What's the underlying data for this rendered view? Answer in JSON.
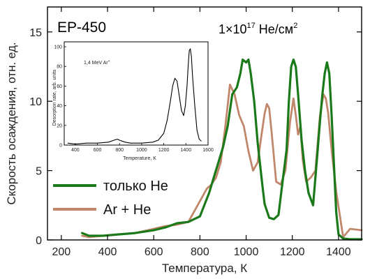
{
  "chart_data": [
    {
      "type": "line",
      "xlabel": "Температура, К",
      "ylabel": "Скорость осаждения, отн. ед.",
      "xlim": [
        140,
        1500
      ],
      "ylim": [
        0,
        16.8
      ],
      "xticks": [
        200,
        400,
        600,
        800,
        1000,
        1200,
        1400
      ],
      "yticks": [
        0,
        5,
        10,
        15
      ],
      "grid": false,
      "legend_position": "left",
      "annotations": {
        "sample": "EP-450",
        "fluence_prefix": "1×10",
        "fluence_exp": "17",
        "fluence_mid": " He/см",
        "fluence_sup2": "2"
      },
      "series": [
        {
          "name": "только He",
          "color": "#1a7a1a",
          "x": [
            290,
            320,
            380,
            450,
            520,
            600,
            650,
            700,
            750,
            800,
            840,
            860,
            880,
            900,
            920,
            940,
            960,
            975,
            985,
            1000,
            1010,
            1020,
            1035,
            1050,
            1060,
            1070,
            1080,
            1100,
            1120,
            1140,
            1160,
            1175,
            1185,
            1195,
            1205,
            1215,
            1225,
            1240,
            1255,
            1270,
            1290,
            1310,
            1320,
            1330,
            1340,
            1350,
            1360,
            1370,
            1380,
            1390,
            1400,
            1420,
            1450,
            1500
          ],
          "y": [
            0.5,
            0.3,
            0.3,
            0.4,
            0.5,
            0.7,
            0.9,
            1.2,
            1.3,
            1.7,
            3.4,
            4.5,
            5.6,
            6.7,
            8.2,
            10.5,
            11.0,
            12.0,
            13.0,
            12.8,
            13.0,
            12.0,
            10.0,
            7.0,
            5.5,
            4.0,
            2.6,
            1.6,
            1.5,
            1.8,
            4.5,
            6.5,
            10.0,
            12.5,
            13.0,
            12.5,
            10.5,
            7.2,
            5.0,
            3.4,
            2.5,
            6.5,
            8.6,
            10.5,
            12.0,
            12.8,
            12.0,
            9.0,
            5.5,
            2.0,
            0.4,
            0.1,
            0.05,
            0.05
          ]
        },
        {
          "name": "Ar + He",
          "color": "#c1876b",
          "x": [
            290,
            320,
            380,
            450,
            520,
            600,
            650,
            700,
            750,
            800,
            830,
            850,
            870,
            890,
            910,
            930,
            950,
            970,
            990,
            1010,
            1030,
            1050,
            1065,
            1080,
            1090,
            1100,
            1110,
            1130,
            1150,
            1170,
            1190,
            1205,
            1215,
            1225,
            1235,
            1245,
            1260,
            1280,
            1300,
            1320,
            1335,
            1345,
            1355,
            1370,
            1390,
            1420,
            1450,
            1500
          ],
          "y": [
            0.3,
            0.2,
            0.3,
            0.4,
            0.5,
            0.8,
            1.0,
            1.1,
            1.3,
            2.8,
            3.7,
            4.0,
            4.5,
            5.6,
            8.2,
            11.2,
            10.5,
            9.0,
            8.2,
            6.4,
            5.0,
            5.6,
            7.4,
            9.1,
            9.8,
            9.5,
            7.8,
            4.2,
            4.0,
            5.0,
            8.5,
            10.2,
            9.0,
            7.6,
            8.2,
            5.8,
            4.2,
            4.5,
            5.0,
            9.0,
            10.5,
            10.2,
            9.2,
            6.5,
            3.5,
            0.2,
            0.8,
            0.7
          ]
        }
      ]
    },
    {
      "type": "line",
      "inset": true,
      "title": "1,4 MeV Ar+",
      "xlabel": "Temperature, K",
      "ylabel": "Desorption rate, arb. units",
      "xlim": [
        300,
        1600
      ],
      "ylim": [
        0,
        105
      ],
      "xticks": [
        400,
        600,
        800,
        1000,
        1200,
        1400,
        1600
      ],
      "yticks": [
        0,
        20,
        40,
        60,
        80,
        100
      ],
      "series": [
        {
          "name": "",
          "color": "#000000",
          "x": [
            330,
            400,
            500,
            600,
            700,
            750,
            780,
            800,
            850,
            900,
            1000,
            1100,
            1150,
            1200,
            1230,
            1260,
            1280,
            1300,
            1320,
            1340,
            1360,
            1380,
            1395,
            1410,
            1420,
            1430,
            1440,
            1450,
            1460,
            1480,
            1500,
            1520,
            1540
          ],
          "y": [
            2,
            1,
            2,
            2,
            3,
            5,
            6,
            5,
            3,
            2,
            2,
            3,
            5,
            12,
            25,
            45,
            60,
            68,
            65,
            50,
            35,
            30,
            40,
            60,
            80,
            96,
            98,
            90,
            70,
            40,
            15,
            6,
            4
          ]
        }
      ]
    }
  ]
}
